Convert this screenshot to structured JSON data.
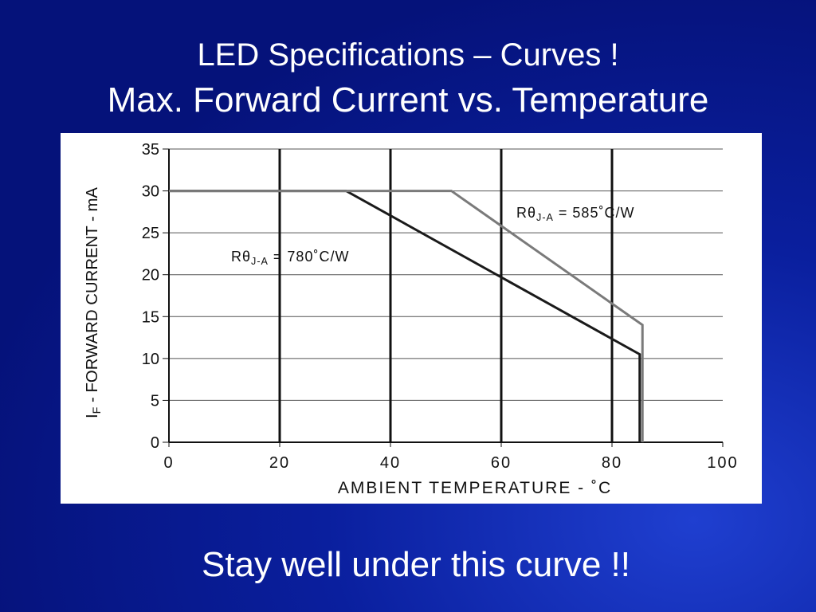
{
  "slide": {
    "title": [
      "LED Specifications – Curves !",
      "Max. Forward Current vs. Temperature"
    ],
    "footer": "Stay well under this curve !!"
  },
  "chart_data": {
    "type": "line",
    "x_label": [
      "AMBIENT TEMPERATURE - ˚C"
    ],
    "y_label": [
      "I",
      "F",
      " - FORWARD CURRENT - mA"
    ],
    "series": [
      {
        "color": "#1a1a1a",
        "x": [
          0,
          32,
          85,
          85
        ],
        "values": [
          30,
          30,
          10.5,
          0
        ]
      },
      {
        "color": "#7a7a7a",
        "x": [
          0,
          51,
          85.5,
          85.5
        ],
        "values": [
          30,
          30,
          14,
          0
        ]
      }
    ],
    "annotations": [
      [
        "Rθ",
        "J-A",
        " = 780˚C/W"
      ],
      [
        "Rθ",
        "J-A",
        " = 585˚C/W"
      ]
    ],
    "xlim": [
      0,
      100
    ],
    "xticks": [
      0,
      20,
      40,
      60,
      80,
      100
    ],
    "ylim": [
      0,
      35
    ],
    "yticks": [
      0,
      5,
      10,
      15,
      20,
      25,
      30,
      35
    ],
    "grid": true
  }
}
